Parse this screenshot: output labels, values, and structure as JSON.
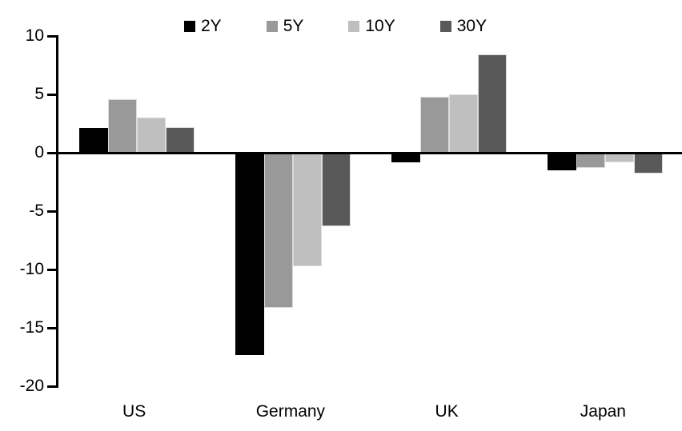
{
  "chart_data": {
    "type": "bar",
    "variant": "grouped",
    "title": "",
    "xlabel": "",
    "ylabel": "",
    "categories": [
      "US",
      "Germany",
      "UK",
      "Japan"
    ],
    "series": [
      {
        "name": "2Y",
        "color": "#000000",
        "values": [
          2.1,
          -17.3,
          -0.8,
          -1.5
        ]
      },
      {
        "name": "5Y",
        "color": "#999999",
        "values": [
          4.6,
          -13.3,
          4.8,
          -1.3
        ]
      },
      {
        "name": "10Y",
        "color": "#bfbfbf",
        "values": [
          3.0,
          -9.7,
          5.0,
          -0.8
        ]
      },
      {
        "name": "30Y",
        "color": "#595959",
        "values": [
          2.2,
          -6.3,
          8.4,
          -1.8
        ]
      }
    ],
    "ylim": [
      -20,
      10
    ],
    "yticks": [
      10,
      5,
      0,
      -5,
      -10,
      -15,
      -20
    ],
    "grid": false,
    "legend_position": "top",
    "axis_color": "#000000",
    "background_color": "#ffffff"
  }
}
